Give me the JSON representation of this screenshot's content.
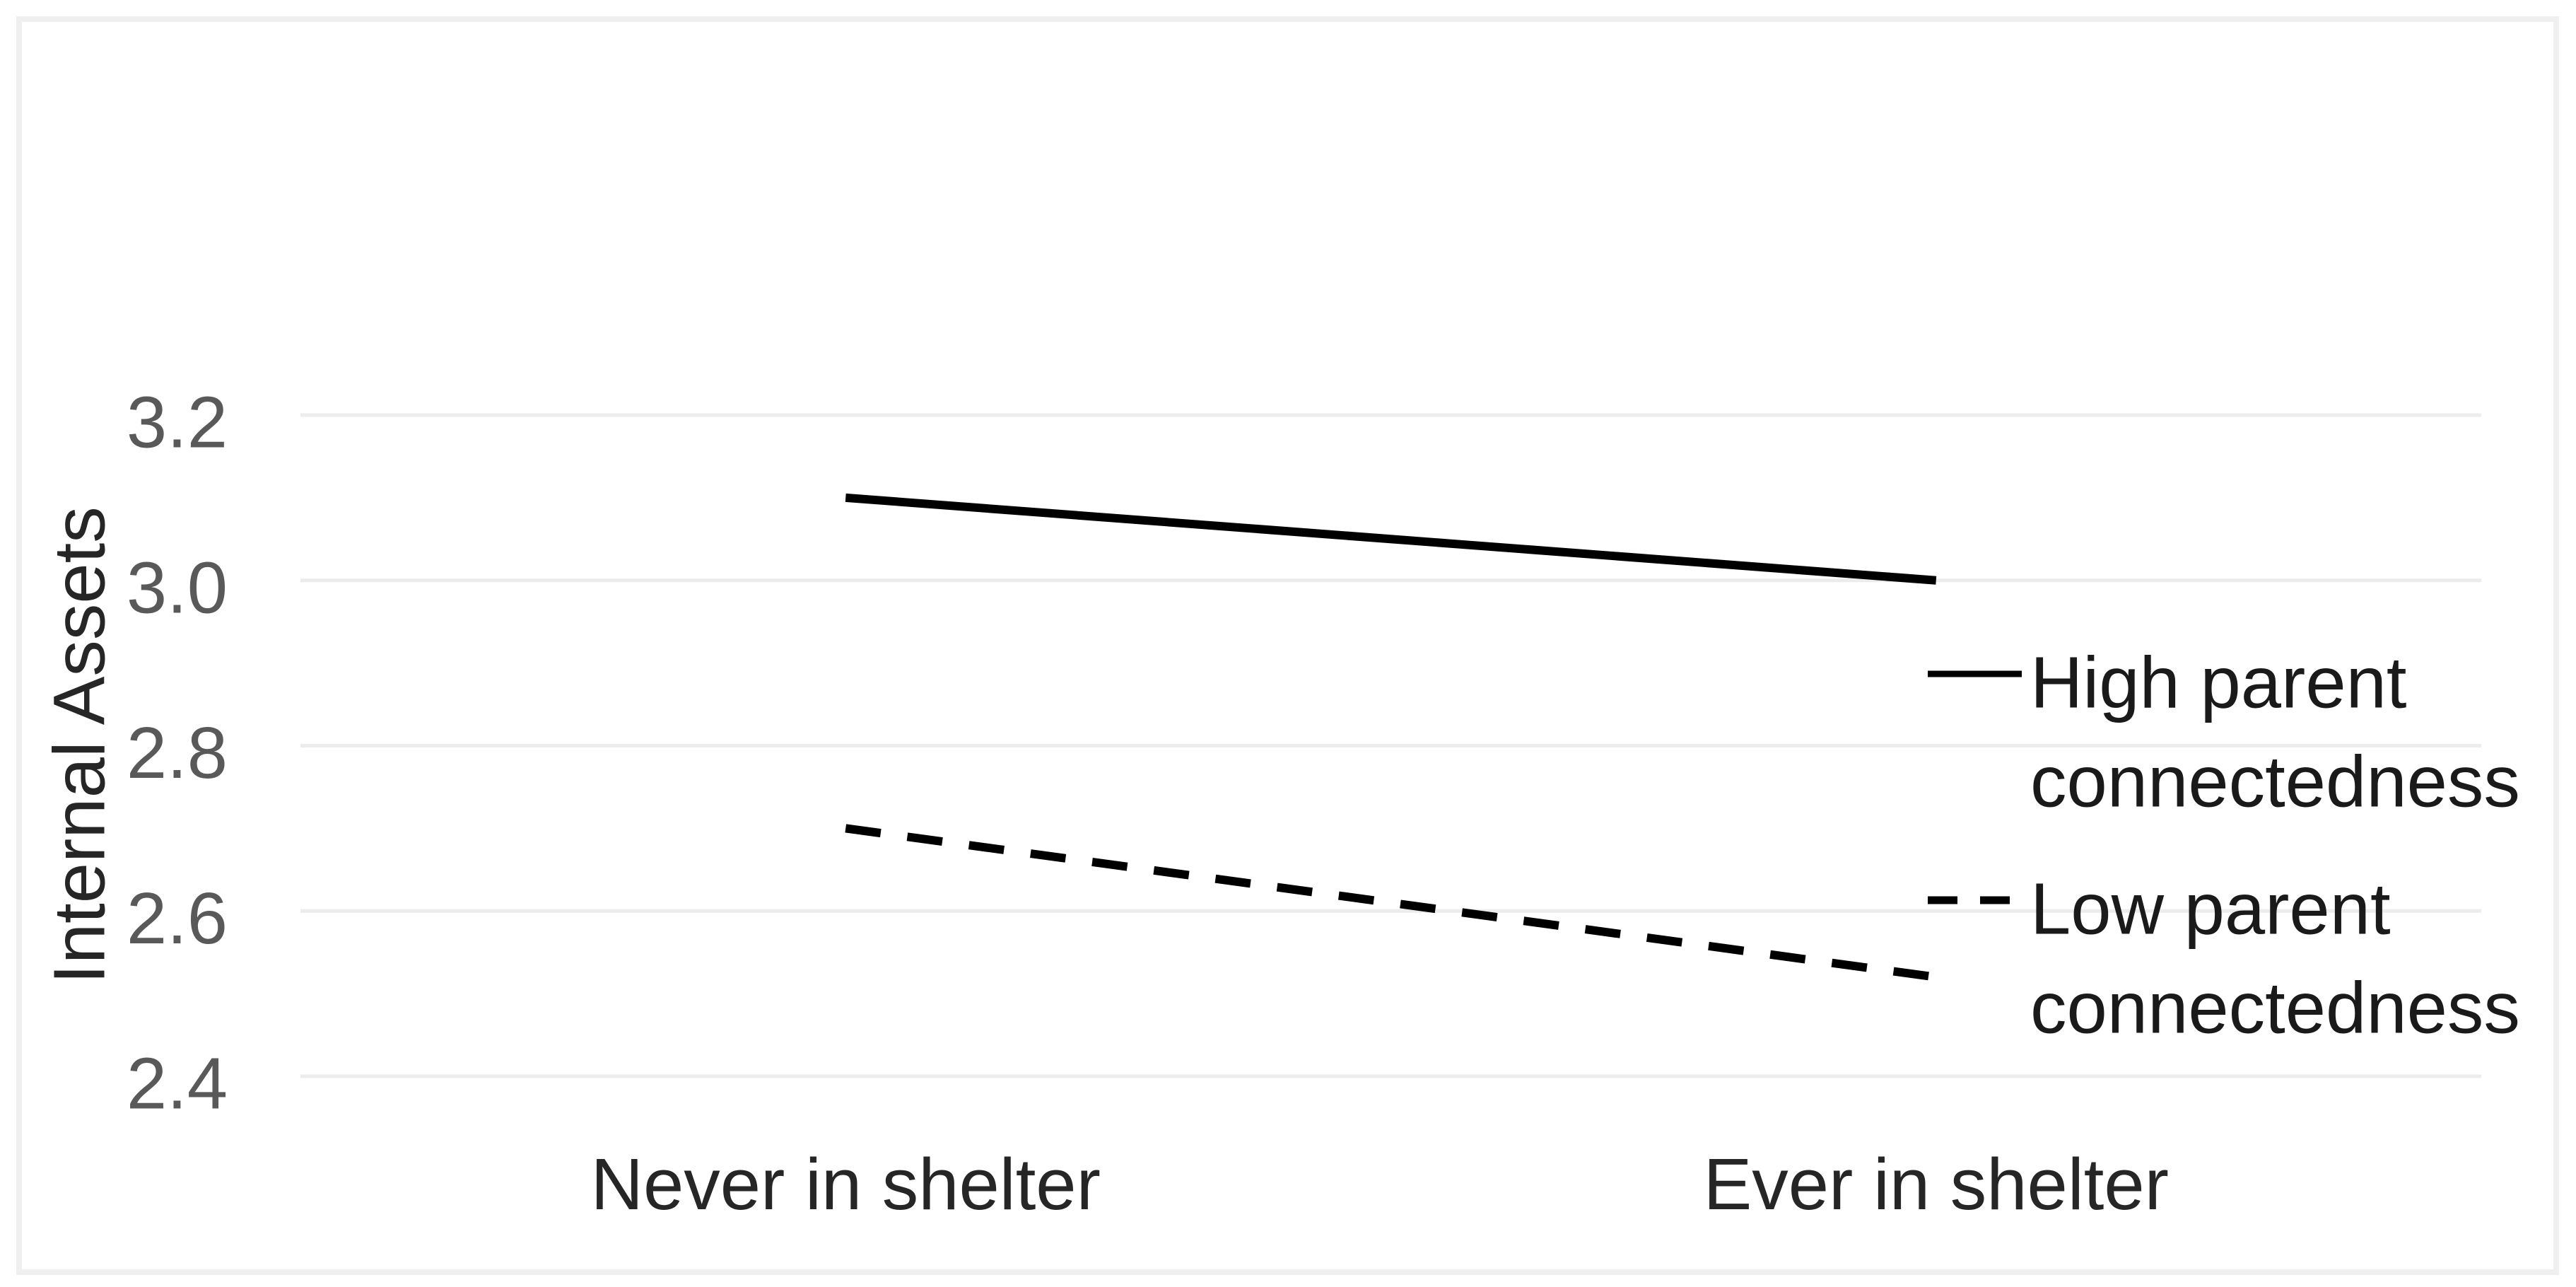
{
  "chart_data": {
    "type": "line",
    "title": "",
    "categories": [
      "Never in shelter",
      "Ever in shelter"
    ],
    "series": [
      {
        "name": "High parent connectedness",
        "legend_lines": [
          "High parent",
          "connectedness"
        ],
        "values": [
          3.1,
          3.0
        ],
        "line_style": "solid",
        "color": "#000000"
      },
      {
        "name": "Low parent connectedness",
        "legend_lines": [
          "Low parent",
          "connectedness"
        ],
        "values": [
          2.7,
          2.52
        ],
        "line_style": "dashed",
        "color": "#000000"
      }
    ],
    "xlabel": "",
    "ylabel": "Internal Assets",
    "ylim": [
      2.4,
      3.2
    ],
    "ytick_step": 0.2,
    "ytick_labels": [
      "3.2",
      "3.0",
      "2.8",
      "2.6",
      "2.4"
    ],
    "grid": "horizontal-only",
    "legend_position": "right-middle"
  },
  "colors": {
    "background": "#FFFFFF",
    "figure_border": "#EFEFEF",
    "gridline": "#ECECEC",
    "tick_label": "#595959",
    "axis_text": "#262626",
    "legend_text": "#1a1a1a",
    "series_line": "#000000"
  }
}
